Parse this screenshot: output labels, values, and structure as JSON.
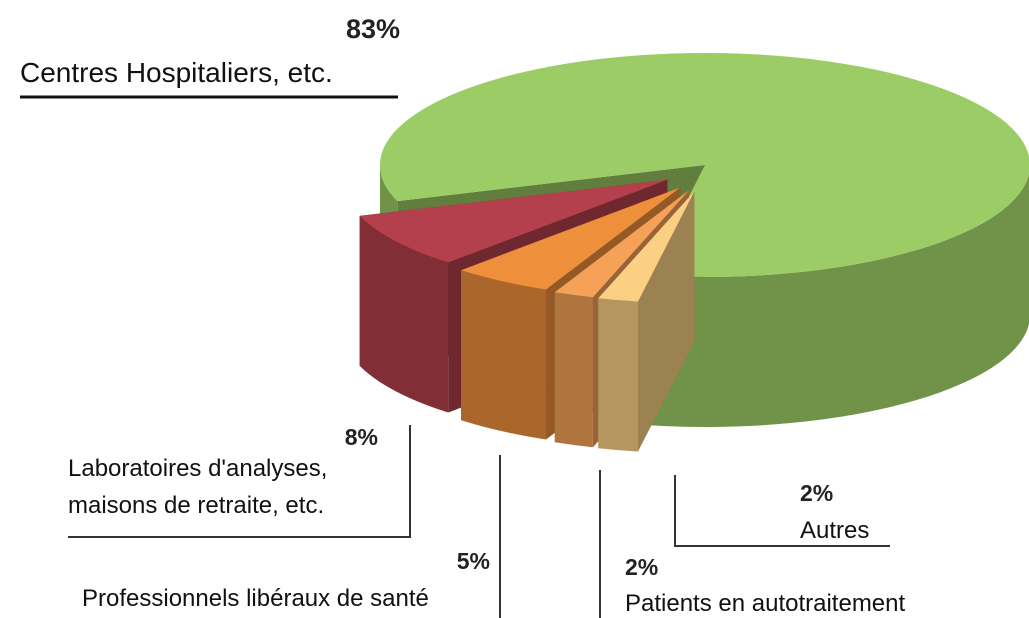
{
  "chart_data": {
    "type": "pie",
    "categories": [
      "Centres Hospitaliers, etc.",
      "Laboratoires d'analyses, maisons de retraite, etc.",
      "Professionnels libéraux de santé",
      "Patients en autotraitement",
      "Autres"
    ],
    "values": [
      83,
      8,
      5,
      2,
      2
    ],
    "value_labels": [
      "83%",
      "8%",
      "5%",
      "2%",
      "2%"
    ],
    "colors": [
      "#9ccc65",
      "#b3404c",
      "#ee8f3c",
      "#f5a258",
      "#fcd083"
    ]
  }
}
